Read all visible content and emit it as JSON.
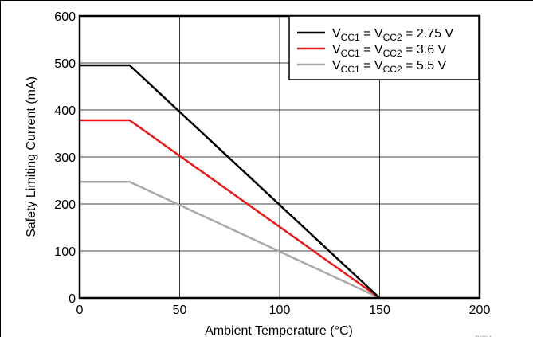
{
  "chart_data": {
    "type": "line",
    "title": "",
    "xlabel": "Ambient Temperature (°C)",
    "ylabel": "Safety Limiting Current (mA)",
    "xlim": [
      0,
      200
    ],
    "ylim": [
      0,
      600
    ],
    "xticks": [
      0,
      50,
      100,
      150,
      200
    ],
    "yticks": [
      0,
      100,
      200,
      300,
      400,
      500,
      600
    ],
    "grid": true,
    "legend_position": "top-right",
    "series": [
      {
        "label_main": "V",
        "label_sub1": "CC1",
        "label_mid": " = V",
        "label_sub2": "CC2",
        "label_value": " = 2.75 V",
        "color": "#000000",
        "x": [
          0,
          25,
          150
        ],
        "y": [
          495,
          495,
          0
        ]
      },
      {
        "label_main": "V",
        "label_sub1": "CC1",
        "label_mid": " = V",
        "label_sub2": "CC2",
        "label_value": " = 3.6 V",
        "color": "#e31b1b",
        "x": [
          0,
          25,
          150
        ],
        "y": [
          378,
          378,
          0
        ]
      },
      {
        "label_main": "V",
        "label_sub1": "CC1",
        "label_mid": " = V",
        "label_sub2": "CC2",
        "label_value": " = 5.5 V",
        "color": "#a9a9a9",
        "x": [
          0,
          25,
          150
        ],
        "y": [
          247,
          247,
          0
        ]
      }
    ],
    "doc_id": "D004"
  }
}
